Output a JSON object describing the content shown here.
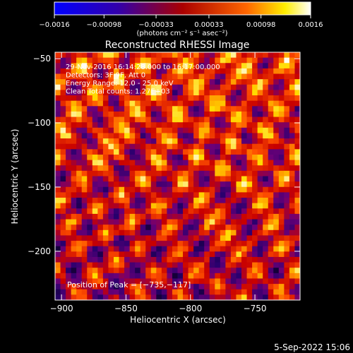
{
  "chart_data": {
    "type": "heatmap",
    "title": "Reconstructed RHESSI Image",
    "xlabel": "Heliocentric X (arcsec)",
    "ylabel": "Heliocentric Y (arcsec)",
    "xlim": [
      -905,
      -715
    ],
    "ylim": [
      -238,
      -45
    ],
    "x_ticks": [
      -900,
      -850,
      -800,
      -750
    ],
    "x_tick_labels": [
      "−900",
      "−850",
      "−800",
      "−750"
    ],
    "y_ticks": [
      -50,
      -100,
      -150,
      -200
    ],
    "y_tick_labels": [
      "−50",
      "−100",
      "−150",
      "−200"
    ],
    "colorbar": {
      "ticks": [
        -0.0016,
        -0.00098,
        -0.00033,
        0.00033,
        0.00098,
        0.0016
      ],
      "tick_labels": [
        "−0.0016",
        "−0.00098",
        "−0.00033",
        "0.00033",
        "0.00098",
        "0.0016"
      ],
      "units": "(photons cm⁻² s⁻¹ asec⁻²)",
      "colormap": [
        "#000000",
        "#3300aa",
        "#ff0000",
        "#ffdd00",
        "#ffffff"
      ]
    },
    "annotations": [
      "29-Nov-2016 16:14:28.000 to 16:17:00.000",
      "Detectors: 3F 9F, Att 0",
      "Energy Range: 12.0 - 25.0 keV",
      "Clean    Total counts: 1.27E+03"
    ],
    "peak_label": "Position of Peak = [−735,−117]",
    "peak": [
      -735,
      -117
    ],
    "grid": false
  },
  "footer": {
    "date": "5-Sep-2022 15:06"
  }
}
